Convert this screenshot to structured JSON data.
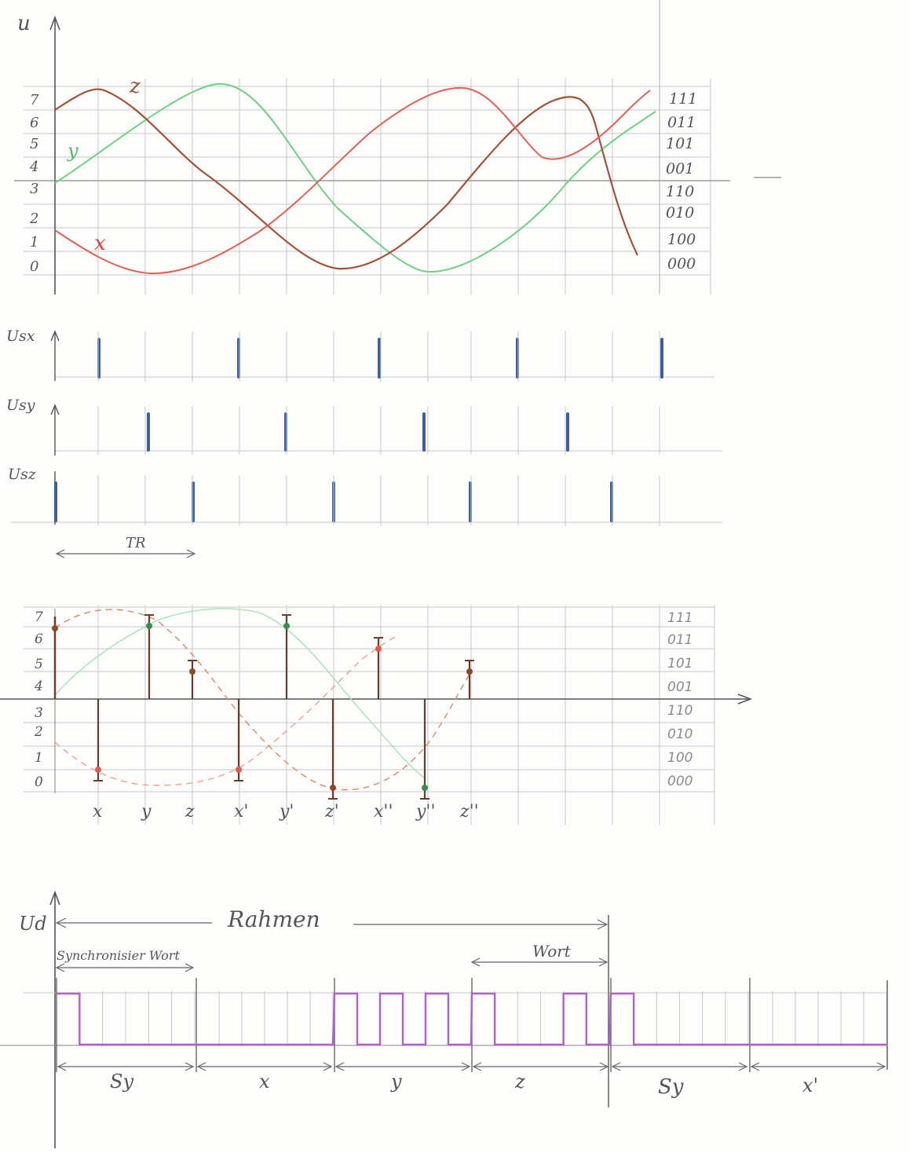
{
  "colors": {
    "grid": "#c8c8c8",
    "grid_dark": "#9a9a9a",
    "axis": "#555555",
    "x_curve": "#e0605a",
    "y_curve": "#6fcf86",
    "z_curve": "#a0523a",
    "pulse": "#3b5fa0",
    "digital": "#b060c8",
    "stem": "#6a3a2a",
    "text": "#555555"
  },
  "graph1": {
    "axis_label": "u",
    "levels": [
      "0",
      "1",
      "2",
      "3",
      "4",
      "5",
      "6",
      "7"
    ],
    "codes": [
      "000",
      "100",
      "010",
      "110",
      "001",
      "101",
      "011",
      "111"
    ],
    "curve_labels": {
      "x": "x",
      "y": "y",
      "z": "z"
    }
  },
  "pulses": {
    "usx_label": "Usx",
    "usy_label": "Usy",
    "usz_label": "Usz",
    "period_label": "TR"
  },
  "graph2": {
    "levels": [
      "0",
      "1",
      "2",
      "3",
      "4",
      "5",
      "6",
      "7"
    ],
    "codes": [
      "000",
      "100",
      "010",
      "110",
      "001",
      "101",
      "011",
      "111"
    ],
    "sample_labels": [
      "x",
      "y",
      "z",
      "x'",
      "y'",
      "z'",
      "x''",
      "y''",
      "z''"
    ]
  },
  "graph3": {
    "axis_label": "Ud",
    "frame_label": "Rahmen",
    "sync_word_label": "Synchronisier Wort",
    "word_label": "Wort",
    "segments": [
      "Sy",
      "x",
      "y",
      "z",
      "Sy",
      "x'"
    ],
    "bits": [
      [
        1,
        0,
        0,
        0,
        0,
        0
      ],
      [
        0,
        0,
        0,
        0,
        0,
        0
      ],
      [
        1,
        0,
        1,
        0,
        1,
        0
      ],
      [
        1,
        0,
        0,
        0,
        1,
        0
      ],
      [
        1,
        0,
        0,
        0,
        0,
        0
      ],
      [
        0,
        0,
        0,
        0,
        0,
        0
      ]
    ]
  },
  "chart_data": {
    "type": "line",
    "series": [
      {
        "name": "x",
        "values": [
          2,
          1,
          0,
          0,
          1,
          2,
          4,
          6,
          7,
          7,
          6,
          4,
          5,
          7
        ]
      },
      {
        "name": "y",
        "values": [
          3,
          5,
          6,
          7,
          7,
          5,
          2,
          1,
          0,
          0,
          2,
          3,
          4,
          6
        ]
      },
      {
        "name": "z",
        "values": [
          6,
          7,
          6,
          4,
          2,
          0.5,
          0,
          1,
          3,
          5,
          6,
          6,
          4,
          1
        ]
      }
    ],
    "samples": [
      {
        "label": "x",
        "value": 1
      },
      {
        "label": "y",
        "value": 7
      },
      {
        "label": "z",
        "value": 5
      },
      {
        "label": "x'",
        "value": 1
      },
      {
        "label": "y'",
        "value": 7
      },
      {
        "label": "z'",
        "value": 0
      },
      {
        "label": "x''",
        "value": 6
      },
      {
        "label": "y''",
        "value": 0
      },
      {
        "label": "z''",
        "value": 5
      }
    ]
  }
}
